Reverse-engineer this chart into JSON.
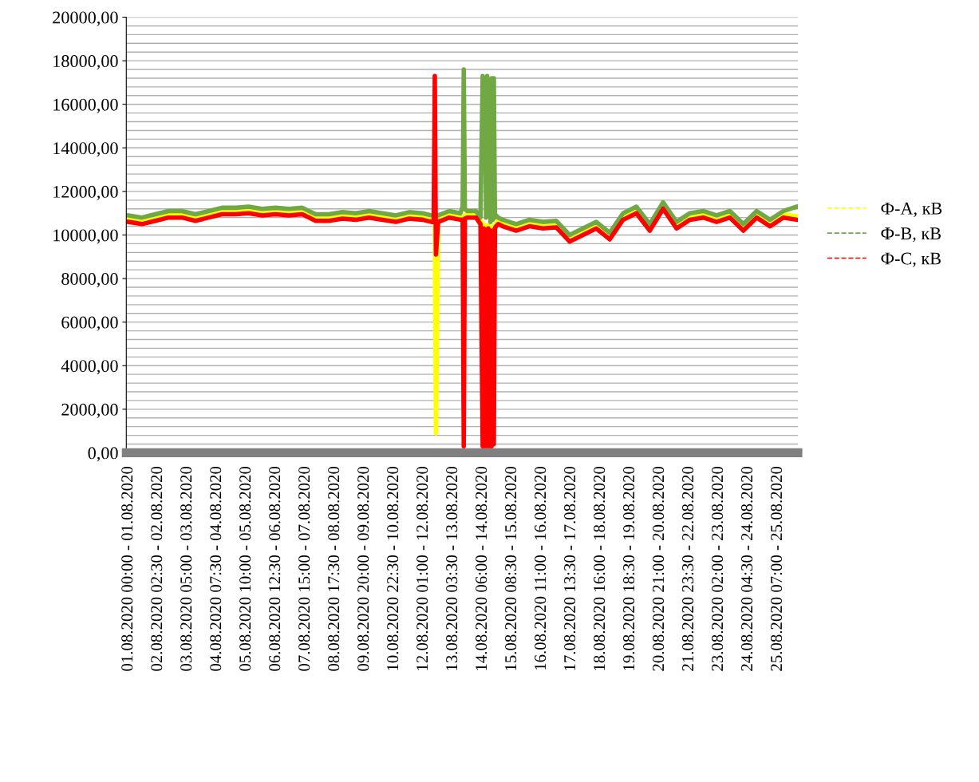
{
  "chart_data": {
    "type": "line",
    "x": [
      "2020-08-01T00:00",
      "2020-08-01T12:00",
      "2020-08-02T00:00",
      "2020-08-02T12:00",
      "2020-08-03T00:00",
      "2020-08-03T12:00",
      "2020-08-04T00:00",
      "2020-08-04T12:00",
      "2020-08-05T00:00",
      "2020-08-05T12:00",
      "2020-08-06T00:00",
      "2020-08-06T12:00",
      "2020-08-07T00:00",
      "2020-08-07T12:00",
      "2020-08-08T00:00",
      "2020-08-08T12:00",
      "2020-08-09T00:00",
      "2020-08-09T12:00",
      "2020-08-10T00:00",
      "2020-08-10T12:00",
      "2020-08-11T00:00",
      "2020-08-11T12:00",
      "2020-08-12T00:00",
      "2020-08-12T08:00",
      "2020-08-12T10:00",
      "2020-08-12T11:00",
      "2020-08-12T12:00",
      "2020-08-12T14:00",
      "2020-08-13T00:00",
      "2020-08-13T10:00",
      "2020-08-13T12:00",
      "2020-08-13T13:00",
      "2020-08-13T14:00",
      "2020-08-13T16:00",
      "2020-08-14T00:00",
      "2020-08-14T04:00",
      "2020-08-14T06:00",
      "2020-08-14T07:00",
      "2020-08-14T08:00",
      "2020-08-14T09:00",
      "2020-08-14T10:00",
      "2020-08-14T11:00",
      "2020-08-14T12:00",
      "2020-08-14T13:00",
      "2020-08-14T14:00",
      "2020-08-14T15:00",
      "2020-08-14T16:00",
      "2020-08-14T17:00",
      "2020-08-14T18:00",
      "2020-08-14T20:00",
      "2020-08-15T00:00",
      "2020-08-15T12:00",
      "2020-08-16T00:00",
      "2020-08-16T12:00",
      "2020-08-17T00:00",
      "2020-08-17T12:00",
      "2020-08-18T00:00",
      "2020-08-18T12:00",
      "2020-08-19T00:00",
      "2020-08-19T12:00",
      "2020-08-20T00:00",
      "2020-08-20T12:00",
      "2020-08-21T00:00",
      "2020-08-21T12:00",
      "2020-08-22T00:00",
      "2020-08-22T12:00",
      "2020-08-23T00:00",
      "2020-08-23T12:00",
      "2020-08-24T00:00",
      "2020-08-24T12:00",
      "2020-08-25T00:00",
      "2020-08-25T12:00",
      "2020-08-26T00:00"
    ],
    "series": [
      {
        "name": "Ф-А, кВ",
        "color": "#ffff00",
        "values": [
          10750,
          10650,
          10800,
          10950,
          10950,
          10800,
          10950,
          11100,
          11100,
          11150,
          11050,
          11100,
          11050,
          11100,
          10800,
          10800,
          10900,
          10850,
          10950,
          10850,
          10750,
          10900,
          10850,
          10750,
          10750,
          10700,
          900,
          10750,
          10950,
          10850,
          10850,
          10850,
          10900,
          10950,
          10950,
          10650,
          10500,
          10450,
          10450,
          10350,
          10450,
          10450,
          10400,
          10350,
          10350,
          10350,
          10400,
          10450,
          10550,
          10650,
          10550,
          10350,
          10550,
          10450,
          10500,
          9850,
          10150,
          10450,
          9950,
          10850,
          11150,
          10350,
          11350,
          10450,
          10850,
          10950,
          10750,
          10950,
          10350,
          10950,
          10550,
          10950,
          10850
        ]
      },
      {
        "name": "Ф-В, кВ",
        "color": "#70a844",
        "values": [
          10900,
          10800,
          10950,
          11100,
          11100,
          10950,
          11100,
          11250,
          11250,
          11300,
          11200,
          11250,
          11200,
          11250,
          10950,
          10950,
          11050,
          11000,
          11100,
          11000,
          10900,
          11050,
          11000,
          10900,
          10900,
          11000,
          10900,
          10900,
          11100,
          11000,
          11300,
          17600,
          11200,
          11100,
          11100,
          10800,
          17300,
          16900,
          17200,
          10800,
          17300,
          11000,
          17000,
          10600,
          17200,
          10700,
          17200,
          10800,
          10900,
          10800,
          10700,
          10500,
          10700,
          10600,
          10650,
          10000,
          10300,
          10600,
          10100,
          11000,
          11300,
          10500,
          11500,
          10600,
          11000,
          11100,
          10900,
          11100,
          10500,
          11100,
          10700,
          11100,
          11300
        ]
      },
      {
        "name": "Ф-С, кВ",
        "color": "#ff0000",
        "values": [
          10600,
          10500,
          10650,
          10800,
          10800,
          10650,
          10800,
          10950,
          10950,
          11000,
          10900,
          10950,
          10900,
          10950,
          10650,
          10650,
          10750,
          10700,
          10800,
          10700,
          10600,
          10750,
          10700,
          10600,
          10600,
          17300,
          9100,
          10600,
          10800,
          10700,
          10700,
          300,
          10750,
          10800,
          10800,
          10500,
          300,
          10300,
          300,
          10200,
          300,
          10300,
          300,
          10200,
          300,
          10200,
          400,
          10300,
          10400,
          10500,
          10400,
          10200,
          10400,
          10300,
          10350,
          9700,
          10000,
          10300,
          9800,
          10700,
          11000,
          10200,
          11200,
          10300,
          10700,
          10800,
          10600,
          10800,
          10200,
          10800,
          10400,
          10800,
          10700
        ]
      }
    ],
    "xlim": [
      "2020-07-31T22:00",
      "2020-08-26T01:00"
    ],
    "xticks": [
      {
        "value": "2020-08-01T00:00",
        "label": "01.08.2020 00:00 - 01.08.2020"
      },
      {
        "value": "2020-08-02T02:30",
        "label": "02.08.2020 02:30 - 02.08.2020"
      },
      {
        "value": "2020-08-03T05:00",
        "label": "03.08.2020 05:00 - 03.08.2020"
      },
      {
        "value": "2020-08-04T07:30",
        "label": "04.08.2020 07:30 - 04.08.2020"
      },
      {
        "value": "2020-08-05T10:00",
        "label": "05.08.2020 10:00 - 05.08.2020"
      },
      {
        "value": "2020-08-06T12:30",
        "label": "06.08.2020 12:30 - 06.08.2020"
      },
      {
        "value": "2020-08-07T15:00",
        "label": "07.08.2020 15:00 - 07.08.2020"
      },
      {
        "value": "2020-08-08T17:30",
        "label": "08.08.2020 17:30 - 08.08.2020"
      },
      {
        "value": "2020-08-09T20:00",
        "label": "09.08.2020 20:00 - 09.08.2020"
      },
      {
        "value": "2020-08-10T22:30",
        "label": "10.08.2020 22:30 - 10.08.2020"
      },
      {
        "value": "2020-08-12T01:00",
        "label": "12.08.2020 01:00 - 12.08.2020"
      },
      {
        "value": "2020-08-13T03:30",
        "label": "13.08.2020 03:30 - 13.08.2020"
      },
      {
        "value": "2020-08-14T06:00",
        "label": "14.08.2020 06:00 - 14.08.2020"
      },
      {
        "value": "2020-08-15T08:30",
        "label": "15.08.2020 08:30 - 15.08.2020"
      },
      {
        "value": "2020-08-16T11:00",
        "label": "16.08.2020 11:00 - 16.08.2020"
      },
      {
        "value": "2020-08-17T13:30",
        "label": "17.08.2020 13:30 - 17.08.2020"
      },
      {
        "value": "2020-08-18T16:00",
        "label": "18.08.2020 16:00 - 18.08.2020"
      },
      {
        "value": "2020-08-19T18:30",
        "label": "19.08.2020 18:30 - 19.08.2020"
      },
      {
        "value": "2020-08-20T21:00",
        "label": "20.08.2020 21:00 - 20.08.2020"
      },
      {
        "value": "2020-08-21T23:30",
        "label": "21.08.2020 23:30 - 22.08.2020"
      },
      {
        "value": "2020-08-23T02:00",
        "label": "23.08.2020 02:00 - 23.08.2020"
      },
      {
        "value": "2020-08-24T04:30",
        "label": "24.08.2020 04:30 - 24.08.2020"
      },
      {
        "value": "2020-08-25T07:00",
        "label": "25.08.2020 07:00 - 25.08.2020"
      }
    ],
    "ylim": [
      0,
      20000
    ],
    "yticks": [
      {
        "value": 0,
        "label": "0,00"
      },
      {
        "value": 400,
        "label": null
      },
      {
        "value": 800,
        "label": null
      },
      {
        "value": 1200,
        "label": null
      },
      {
        "value": 1600,
        "label": null
      },
      {
        "value": 2000,
        "label": "2000,00"
      },
      {
        "value": 2400,
        "label": null
      },
      {
        "value": 2800,
        "label": null
      },
      {
        "value": 3200,
        "label": null
      },
      {
        "value": 3600,
        "label": null
      },
      {
        "value": 4000,
        "label": "4000,00"
      },
      {
        "value": 4400,
        "label": null
      },
      {
        "value": 4800,
        "label": null
      },
      {
        "value": 5200,
        "label": null
      },
      {
        "value": 5600,
        "label": null
      },
      {
        "value": 6000,
        "label": "6000,00"
      },
      {
        "value": 6400,
        "label": null
      },
      {
        "value": 6800,
        "label": null
      },
      {
        "value": 7200,
        "label": null
      },
      {
        "value": 7600,
        "label": null
      },
      {
        "value": 8000,
        "label": "8000,00"
      },
      {
        "value": 8400,
        "label": null
      },
      {
        "value": 8800,
        "label": null
      },
      {
        "value": 9200,
        "label": null
      },
      {
        "value": 9600,
        "label": null
      },
      {
        "value": 10000,
        "label": "10000,00"
      },
      {
        "value": 10400,
        "label": null
      },
      {
        "value": 10800,
        "label": null
      },
      {
        "value": 11200,
        "label": null
      },
      {
        "value": 11600,
        "label": null
      },
      {
        "value": 12000,
        "label": "12000,00"
      },
      {
        "value": 12400,
        "label": null
      },
      {
        "value": 12800,
        "label": null
      },
      {
        "value": 13200,
        "label": null
      },
      {
        "value": 13600,
        "label": null
      },
      {
        "value": 14000,
        "label": "14000,00"
      },
      {
        "value": 14400,
        "label": null
      },
      {
        "value": 14800,
        "label": null
      },
      {
        "value": 15200,
        "label": null
      },
      {
        "value": 15600,
        "label": null
      },
      {
        "value": 16000,
        "label": "16000,00"
      },
      {
        "value": 16400,
        "label": null
      },
      {
        "value": 16800,
        "label": null
      },
      {
        "value": 17200,
        "label": null
      },
      {
        "value": 17600,
        "label": null
      },
      {
        "value": 18000,
        "label": "18000,00"
      },
      {
        "value": 18400,
        "label": null
      },
      {
        "value": 18800,
        "label": null
      },
      {
        "value": 19200,
        "label": null
      },
      {
        "value": 19600,
        "label": null
      },
      {
        "value": 20000,
        "label": "20000,00"
      }
    ],
    "grid": "y",
    "legend": "right",
    "marker": "none",
    "line_style": "solid"
  }
}
